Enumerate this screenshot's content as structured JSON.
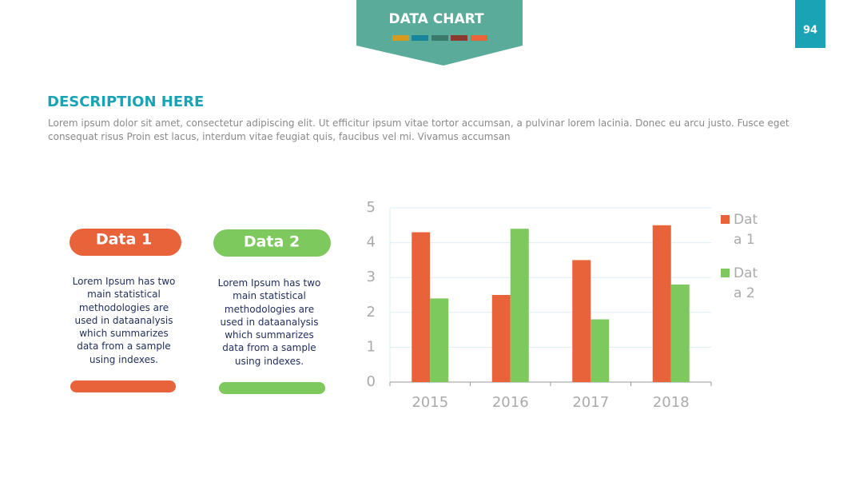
{
  "header": {
    "title": "DATA CHART",
    "page_number": "94"
  },
  "description": {
    "title": "DESCRIPTION HERE",
    "text": "Lorem ipsum dolor sit amet, consectetur adipiscing elit. Ut efficitur ipsum vitae tortor accumsan, a pulvinar lorem lacinia. Donec eu arcu justo. Fusce eget consequat risus Proin est lacus, interdum vitae feugiat quis, faucibus vel mi.  Vivamus accumsan"
  },
  "cards": [
    {
      "title": "Data 1",
      "text": "Lorem Ipsum has two main statistical methodologies are used in dataanalysis which summarizes data from a sample using indexes."
    },
    {
      "title": "Data 2",
      "text": "Lorem Ipsum has two main statistical methodologies are used in dataanalysis which summarizes data from a sample using indexes."
    }
  ],
  "chart_data": {
    "type": "bar",
    "categories": [
      "2015",
      "2016",
      "2017",
      "2018"
    ],
    "series": [
      {
        "name": "Data 1",
        "color": "#e8623a",
        "values": [
          4.3,
          2.5,
          3.5,
          4.5
        ]
      },
      {
        "name": "Data 2",
        "color": "#7dc95e",
        "values": [
          2.4,
          4.4,
          1.8,
          2.8
        ]
      }
    ],
    "ylim": [
      0,
      5
    ],
    "yticks": [
      0,
      1,
      2,
      3,
      4,
      5
    ],
    "grid": true,
    "legend": "right"
  }
}
